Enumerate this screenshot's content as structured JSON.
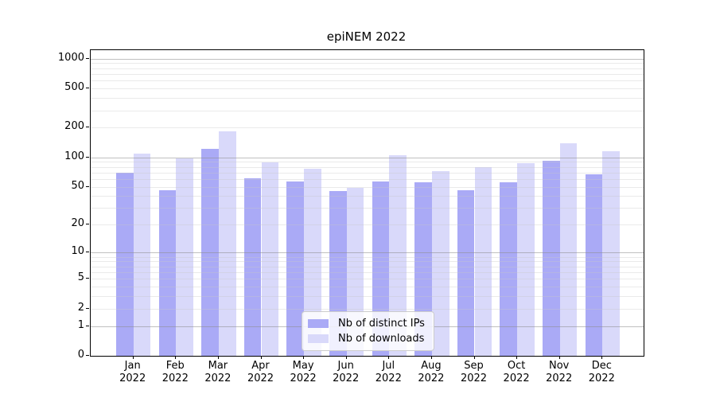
{
  "title": "epiNEM 2022",
  "chart_data": {
    "type": "bar",
    "title": "epiNEM 2022",
    "categories": [
      "Jan 2022",
      "Feb 2022",
      "Mar 2022",
      "Apr 2022",
      "May 2022",
      "Jun 2022",
      "Jul 2022",
      "Aug 2022",
      "Sep 2022",
      "Oct 2022",
      "Nov 2022",
      "Dec 2022"
    ],
    "series": [
      {
        "name": "Nb of distinct IPs",
        "color": "#aaaaf6",
        "values": [
          70,
          46,
          121,
          61,
          57,
          45,
          57,
          56,
          46,
          55,
          92,
          67
        ]
      },
      {
        "name": "Nb of downloads",
        "color": "#d9d9fa",
        "values": [
          110,
          98,
          185,
          88,
          77,
          49,
          105,
          72,
          79,
          87,
          140,
          115
        ]
      }
    ],
    "xlabel": "",
    "ylabel": "",
    "scale": "log1p",
    "y_ticks": [
      1000,
      500,
      200,
      100,
      50,
      20,
      10,
      5,
      2,
      1,
      0
    ],
    "ylim": [
      0,
      1218
    ],
    "grid": "major-and-minor, horizontal, drawn over bars",
    "legend_position": "lower center inside plot"
  },
  "colors": {
    "bar_ips": "#aaaaf6",
    "bar_downloads": "#d9d9fa",
    "grid_major": "#c6c6c6",
    "grid_minor": "#ececec",
    "axis": "#000000",
    "background": "#ffffff",
    "legend_border": "#cccccc"
  }
}
